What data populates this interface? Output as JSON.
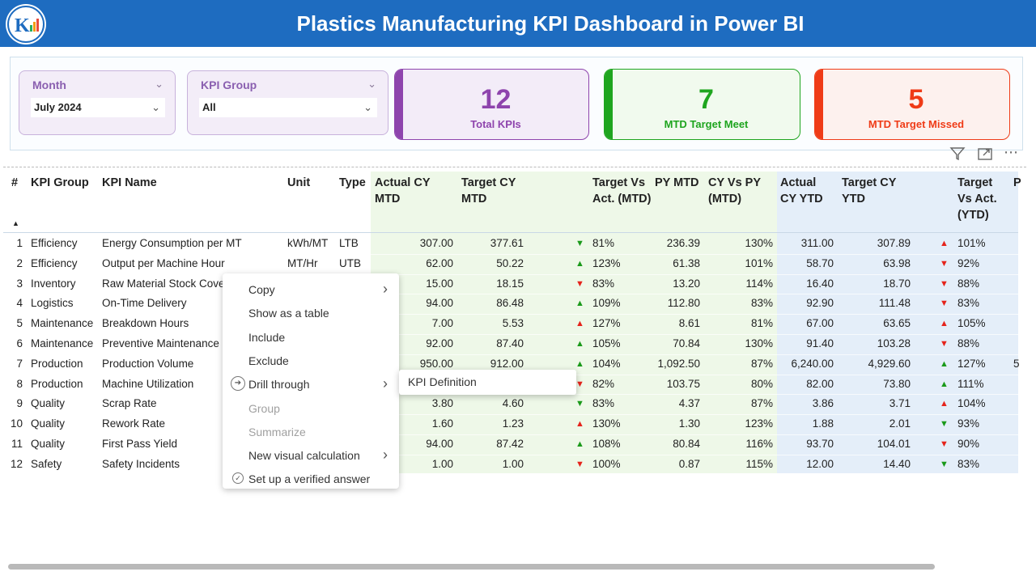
{
  "header": {
    "title": "Plastics Manufacturing KPI Dashboard in Power BI"
  },
  "filters": [
    {
      "label": "Month",
      "value": "July 2024"
    },
    {
      "label": "KPI Group",
      "value": "All"
    }
  ],
  "cards": [
    {
      "value": 12,
      "label": "Total KPIs",
      "color": "#8e44ad",
      "bg": "#f3ecf8"
    },
    {
      "value": 7,
      "label": "MTD Target Meet",
      "color": "#1fa51f",
      "bg": "#f1faee"
    },
    {
      "value": 5,
      "label": "MTD Target Missed",
      "color": "#ef3b17",
      "bg": "#fdf1ee"
    }
  ],
  "table": {
    "columns": [
      "#",
      "KPI Group",
      "KPI Name",
      "Unit",
      "Type",
      "Actual CY MTD",
      "Target CY MTD",
      "Target Vs Act. (MTD)",
      "PY MTD",
      "CY Vs PY (MTD)",
      "Actual CY YTD",
      "Target CY YTD",
      "Target Vs Act. (YTD)",
      "P"
    ],
    "rows": [
      {
        "cells": [
          "1",
          "Efficiency",
          "Energy Consumption per MT",
          "kWh/MT",
          "LTB",
          "307.00",
          "377.61",
          "81%",
          "236.39",
          "130%",
          "311.00",
          "307.89",
          "101%",
          null
        ],
        "mtd_arrow": "down",
        "mtd_color": "#1a9a1a",
        "ytd_arrow": "up",
        "ytd_color": "#e5231b"
      },
      {
        "cells": [
          "2",
          "Efficiency",
          "Output per Machine Hour",
          "MT/Hr",
          "UTB",
          "62.00",
          "50.22",
          "123%",
          "61.38",
          "101%",
          "58.70",
          "63.98",
          "92%",
          null
        ],
        "mtd_arrow": "up",
        "mtd_color": "#1a9a1a",
        "ytd_arrow": "down",
        "ytd_color": "#e5231b"
      },
      {
        "cells": [
          "3",
          "Inventory",
          "Raw Material Stock Cove",
          null,
          null,
          "15.00",
          "18.15",
          "83%",
          "13.20",
          "114%",
          "16.40",
          "18.70",
          "88%",
          null
        ],
        "mtd_arrow": "down",
        "mtd_color": "#e5231b",
        "ytd_arrow": "down",
        "ytd_color": "#e5231b"
      },
      {
        "cells": [
          "4",
          "Logistics",
          "On-Time Delivery",
          null,
          null,
          "94.00",
          "86.48",
          "109%",
          "112.80",
          "83%",
          "92.90",
          "111.48",
          "83%",
          null
        ],
        "mtd_arrow": "up",
        "mtd_color": "#1a9a1a",
        "ytd_arrow": "down",
        "ytd_color": "#e5231b"
      },
      {
        "cells": [
          "5",
          "Maintenance",
          "Breakdown Hours",
          null,
          null,
          "7.00",
          "5.53",
          "127%",
          "8.61",
          "81%",
          "67.00",
          "63.65",
          "105%",
          null
        ],
        "mtd_arrow": "up",
        "mtd_color": "#e5231b",
        "ytd_arrow": "up",
        "ytd_color": "#e5231b"
      },
      {
        "cells": [
          "6",
          "Maintenance",
          "Preventive Maintenance",
          null,
          null,
          "92.00",
          "87.40",
          "105%",
          "70.84",
          "130%",
          "91.40",
          "103.28",
          "88%",
          null
        ],
        "mtd_arrow": "up",
        "mtd_color": "#1a9a1a",
        "ytd_arrow": "down",
        "ytd_color": "#e5231b"
      },
      {
        "cells": [
          "7",
          "Production",
          "Production Volume",
          null,
          null,
          "950.00",
          "912.00",
          "104%",
          "1,092.50",
          "87%",
          "6,240.00",
          "4,929.60",
          "127%",
          "5"
        ],
        "mtd_arrow": "up",
        "mtd_color": "#1a9a1a",
        "ytd_arrow": "up",
        "ytd_color": "#1a9a1a"
      },
      {
        "cells": [
          "8",
          "Production",
          "Machine Utilization",
          null,
          null,
          null,
          null,
          "82%",
          "103.75",
          "80%",
          "82.00",
          "73.80",
          "111%",
          null
        ],
        "mtd_arrow": "down",
        "mtd_color": "#e5231b",
        "ytd_arrow": "up",
        "ytd_color": "#1a9a1a"
      },
      {
        "cells": [
          "9",
          "Quality",
          "Scrap Rate",
          null,
          null,
          "3.80",
          "4.60",
          "83%",
          "4.37",
          "87%",
          "3.86",
          "3.71",
          "104%",
          null
        ],
        "mtd_arrow": "down",
        "mtd_color": "#1a9a1a",
        "ytd_arrow": "up",
        "ytd_color": "#e5231b"
      },
      {
        "cells": [
          "10",
          "Quality",
          "Rework Rate",
          null,
          null,
          "1.60",
          "1.23",
          "130%",
          "1.30",
          "123%",
          "1.88",
          "2.01",
          "93%",
          null
        ],
        "mtd_arrow": "up",
        "mtd_color": "#e5231b",
        "ytd_arrow": "down",
        "ytd_color": "#1a9a1a"
      },
      {
        "cells": [
          "11",
          "Quality",
          "First Pass Yield",
          null,
          null,
          "94.00",
          "87.42",
          "108%",
          "80.84",
          "116%",
          "93.70",
          "104.01",
          "90%",
          null
        ],
        "mtd_arrow": "up",
        "mtd_color": "#1a9a1a",
        "ytd_arrow": "down",
        "ytd_color": "#e5231b"
      },
      {
        "cells": [
          "12",
          "Safety",
          "Safety Incidents",
          null,
          null,
          "1.00",
          "1.00",
          "100%",
          "0.87",
          "115%",
          "12.00",
          "14.40",
          "83%",
          null
        ],
        "mtd_arrow": "down",
        "mtd_color": "#e5231b",
        "ytd_arrow": "down",
        "ytd_color": "#1a9a1a"
      }
    ]
  },
  "context_menu": {
    "items": [
      {
        "label": "Copy",
        "submenu": true,
        "disabled": false,
        "icon": null
      },
      {
        "label": "Show as a table",
        "submenu": false,
        "disabled": false,
        "icon": null
      },
      {
        "label": "Include",
        "submenu": false,
        "disabled": false,
        "icon": null
      },
      {
        "label": "Exclude",
        "submenu": false,
        "disabled": false,
        "icon": null
      },
      {
        "label": "Drill through",
        "submenu": true,
        "disabled": false,
        "icon": "arrow"
      },
      {
        "label": "Group",
        "submenu": false,
        "disabled": true,
        "icon": null
      },
      {
        "label": "Summarize",
        "submenu": false,
        "disabled": true,
        "icon": null
      },
      {
        "label": "New visual calculation",
        "submenu": true,
        "disabled": false,
        "icon": null
      },
      {
        "label": "Set up a verified answer",
        "submenu": false,
        "disabled": false,
        "icon": "check"
      }
    ],
    "submenu": [
      "KPI Definition"
    ]
  }
}
